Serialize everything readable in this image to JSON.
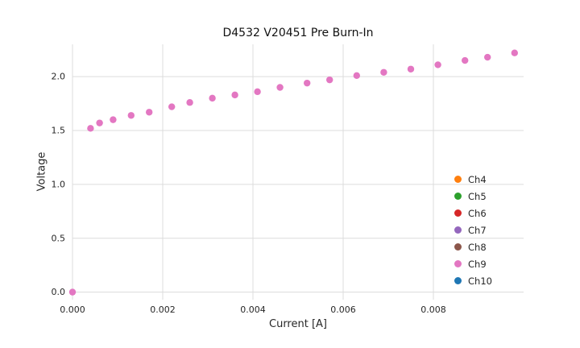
{
  "figure": {
    "title": "D4532 V20451 Pre Burn-In",
    "xlabel": "Current [A]",
    "ylabel": "Voltage"
  },
  "chart_data": {
    "type": "scatter",
    "title": "D4532 V20451 Pre Burn-In",
    "xlabel": "Current [A]",
    "ylabel": "Voltage",
    "xlim": [
      0.0,
      0.01
    ],
    "ylim": [
      -0.07,
      2.3
    ],
    "grid": true,
    "grid_color": "#dcdcdc",
    "background": "#ffffff",
    "legend_position": "lower right",
    "marker_radius": 4.2,
    "xticks": [
      {
        "value": 0.0,
        "label": "0.000"
      },
      {
        "value": 0.002,
        "label": "0.002"
      },
      {
        "value": 0.004,
        "label": "0.004"
      },
      {
        "value": 0.006,
        "label": "0.006"
      },
      {
        "value": 0.008,
        "label": "0.008"
      }
    ],
    "yticks": [
      {
        "value": 0.0,
        "label": "0.0"
      },
      {
        "value": 0.5,
        "label": "0.5"
      },
      {
        "value": 1.0,
        "label": "1.0"
      },
      {
        "value": 1.5,
        "label": "1.5"
      },
      {
        "value": 2.0,
        "label": "2.0"
      }
    ],
    "series": [
      {
        "name": "Ch4",
        "color": "#ff7f0e",
        "points": []
      },
      {
        "name": "Ch5",
        "color": "#2ca02c",
        "points": []
      },
      {
        "name": "Ch6",
        "color": "#d62728",
        "points": []
      },
      {
        "name": "Ch7",
        "color": "#9467bd",
        "points": []
      },
      {
        "name": "Ch8",
        "color": "#8c564b",
        "points": []
      },
      {
        "name": "Ch9",
        "color": "#e377c2",
        "points": [
          [
            0.0,
            0.0
          ],
          [
            0.0004,
            1.52
          ],
          [
            0.0006,
            1.57
          ],
          [
            0.0009,
            1.6
          ],
          [
            0.0013,
            1.64
          ],
          [
            0.0017,
            1.67
          ],
          [
            0.0022,
            1.72
          ],
          [
            0.0026,
            1.76
          ],
          [
            0.0031,
            1.8
          ],
          [
            0.0036,
            1.83
          ],
          [
            0.0041,
            1.86
          ],
          [
            0.0046,
            1.9
          ],
          [
            0.0052,
            1.94
          ],
          [
            0.0057,
            1.97
          ],
          [
            0.0063,
            2.01
          ],
          [
            0.0069,
            2.04
          ],
          [
            0.0075,
            2.07
          ],
          [
            0.0081,
            2.11
          ],
          [
            0.0087,
            2.15
          ],
          [
            0.0092,
            2.18
          ],
          [
            0.0098,
            2.22
          ]
        ]
      },
      {
        "name": "Ch10",
        "color": "#1f77b4",
        "points": []
      }
    ]
  }
}
